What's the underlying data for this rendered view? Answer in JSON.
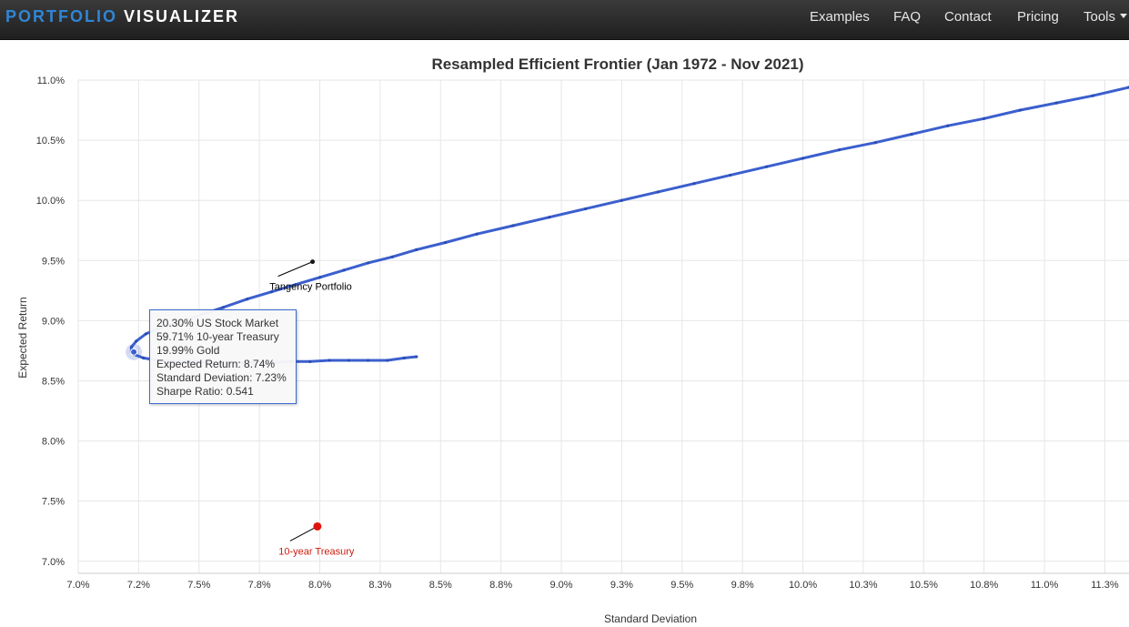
{
  "nav": {
    "brand_part1": "PORTFOLIO",
    "brand_part2": "VISUALIZER",
    "items": [
      "Examples",
      "FAQ",
      "Contact",
      "Pricing",
      "Tools"
    ]
  },
  "colors": {
    "frontier_line": "#3b5fce",
    "treasury_point": "#e0140f",
    "treasury_label": "#cc1d10",
    "brand_accent": "#2e86d6"
  },
  "chart_data": {
    "type": "line",
    "title": "Resampled Efficient Frontier (Jan 1972 - Nov 2021)",
    "xlabel": "Standard Deviation",
    "ylabel": "Expected Return",
    "xlim": [
      7.0,
      11.35
    ],
    "ylim": [
      6.9,
      11.0
    ],
    "x_ticks": [
      "7.0%",
      "7.2%",
      "7.5%",
      "7.8%",
      "8.0%",
      "8.3%",
      "8.5%",
      "8.8%",
      "9.0%",
      "9.3%",
      "9.5%",
      "9.8%",
      "10.0%",
      "10.3%",
      "10.5%",
      "10.8%",
      "11.0%",
      "11.3%"
    ],
    "x_tick_values": [
      7.0,
      7.25,
      7.5,
      7.75,
      8.0,
      8.25,
      8.5,
      8.75,
      9.0,
      9.25,
      9.5,
      9.75,
      10.0,
      10.25,
      10.5,
      10.75,
      11.0,
      11.25
    ],
    "y_ticks": [
      "7.0%",
      "7.5%",
      "8.0%",
      "8.5%",
      "9.0%",
      "9.5%",
      "10.0%",
      "10.5%",
      "11.0%"
    ],
    "y_tick_values": [
      7.0,
      7.5,
      8.0,
      8.5,
      9.0,
      9.5,
      10.0,
      10.5,
      11.0
    ],
    "grid": true,
    "series": [
      {
        "values": [
          [
            8.4,
            8.7
          ],
          [
            8.35,
            8.69
          ],
          [
            8.28,
            8.67
          ],
          [
            8.2,
            8.67
          ],
          [
            8.12,
            8.67
          ],
          [
            8.04,
            8.67
          ],
          [
            7.96,
            8.66
          ],
          [
            7.88,
            8.66
          ],
          [
            7.8,
            8.65
          ],
          [
            7.72,
            8.65
          ],
          [
            7.64,
            8.65
          ],
          [
            7.56,
            8.65
          ],
          [
            7.48,
            8.66
          ],
          [
            7.4,
            8.66
          ],
          [
            7.33,
            8.67
          ],
          [
            7.27,
            8.69
          ],
          [
            7.23,
            8.72
          ],
          [
            7.22,
            8.74
          ],
          [
            7.22,
            8.78
          ],
          [
            7.24,
            8.83
          ],
          [
            7.28,
            8.89
          ],
          [
            7.34,
            8.94
          ],
          [
            7.42,
            8.99
          ],
          [
            7.51,
            9.05
          ],
          [
            7.6,
            9.11
          ],
          [
            7.7,
            9.18
          ],
          [
            7.8,
            9.24
          ],
          [
            7.9,
            9.3
          ],
          [
            8.0,
            9.36
          ],
          [
            8.1,
            9.42
          ],
          [
            8.2,
            9.48
          ],
          [
            8.3,
            9.53
          ],
          [
            8.4,
            9.59
          ],
          [
            8.52,
            9.65
          ],
          [
            8.65,
            9.72
          ],
          [
            8.8,
            9.79
          ],
          [
            8.95,
            9.86
          ],
          [
            9.1,
            9.93
          ],
          [
            9.25,
            10.0
          ],
          [
            9.4,
            10.07
          ],
          [
            9.55,
            10.14
          ],
          [
            9.7,
            10.21
          ],
          [
            9.85,
            10.28
          ],
          [
            10.0,
            10.35
          ],
          [
            10.15,
            10.42
          ],
          [
            10.3,
            10.48
          ],
          [
            10.45,
            10.55
          ],
          [
            10.6,
            10.62
          ],
          [
            10.75,
            10.68
          ],
          [
            10.9,
            10.75
          ],
          [
            11.05,
            10.81
          ],
          [
            11.2,
            10.87
          ],
          [
            11.35,
            10.94
          ]
        ]
      }
    ],
    "tangency_portfolio": {
      "label": "Tangency Portfolio",
      "x": 7.97,
      "y": 9.49
    },
    "treasury_point": {
      "label": "10-year Treasury",
      "x": 7.99,
      "y": 7.29
    },
    "highlighted_point": {
      "x": 7.23,
      "y": 8.74
    },
    "tooltip": {
      "lines": [
        "20.30% US Stock Market",
        "59.71% 10-year Treasury",
        "19.99% Gold",
        "Expected Return: 8.74%",
        "Standard Deviation: 7.23%",
        "Sharpe Ratio: 0.541"
      ]
    }
  }
}
